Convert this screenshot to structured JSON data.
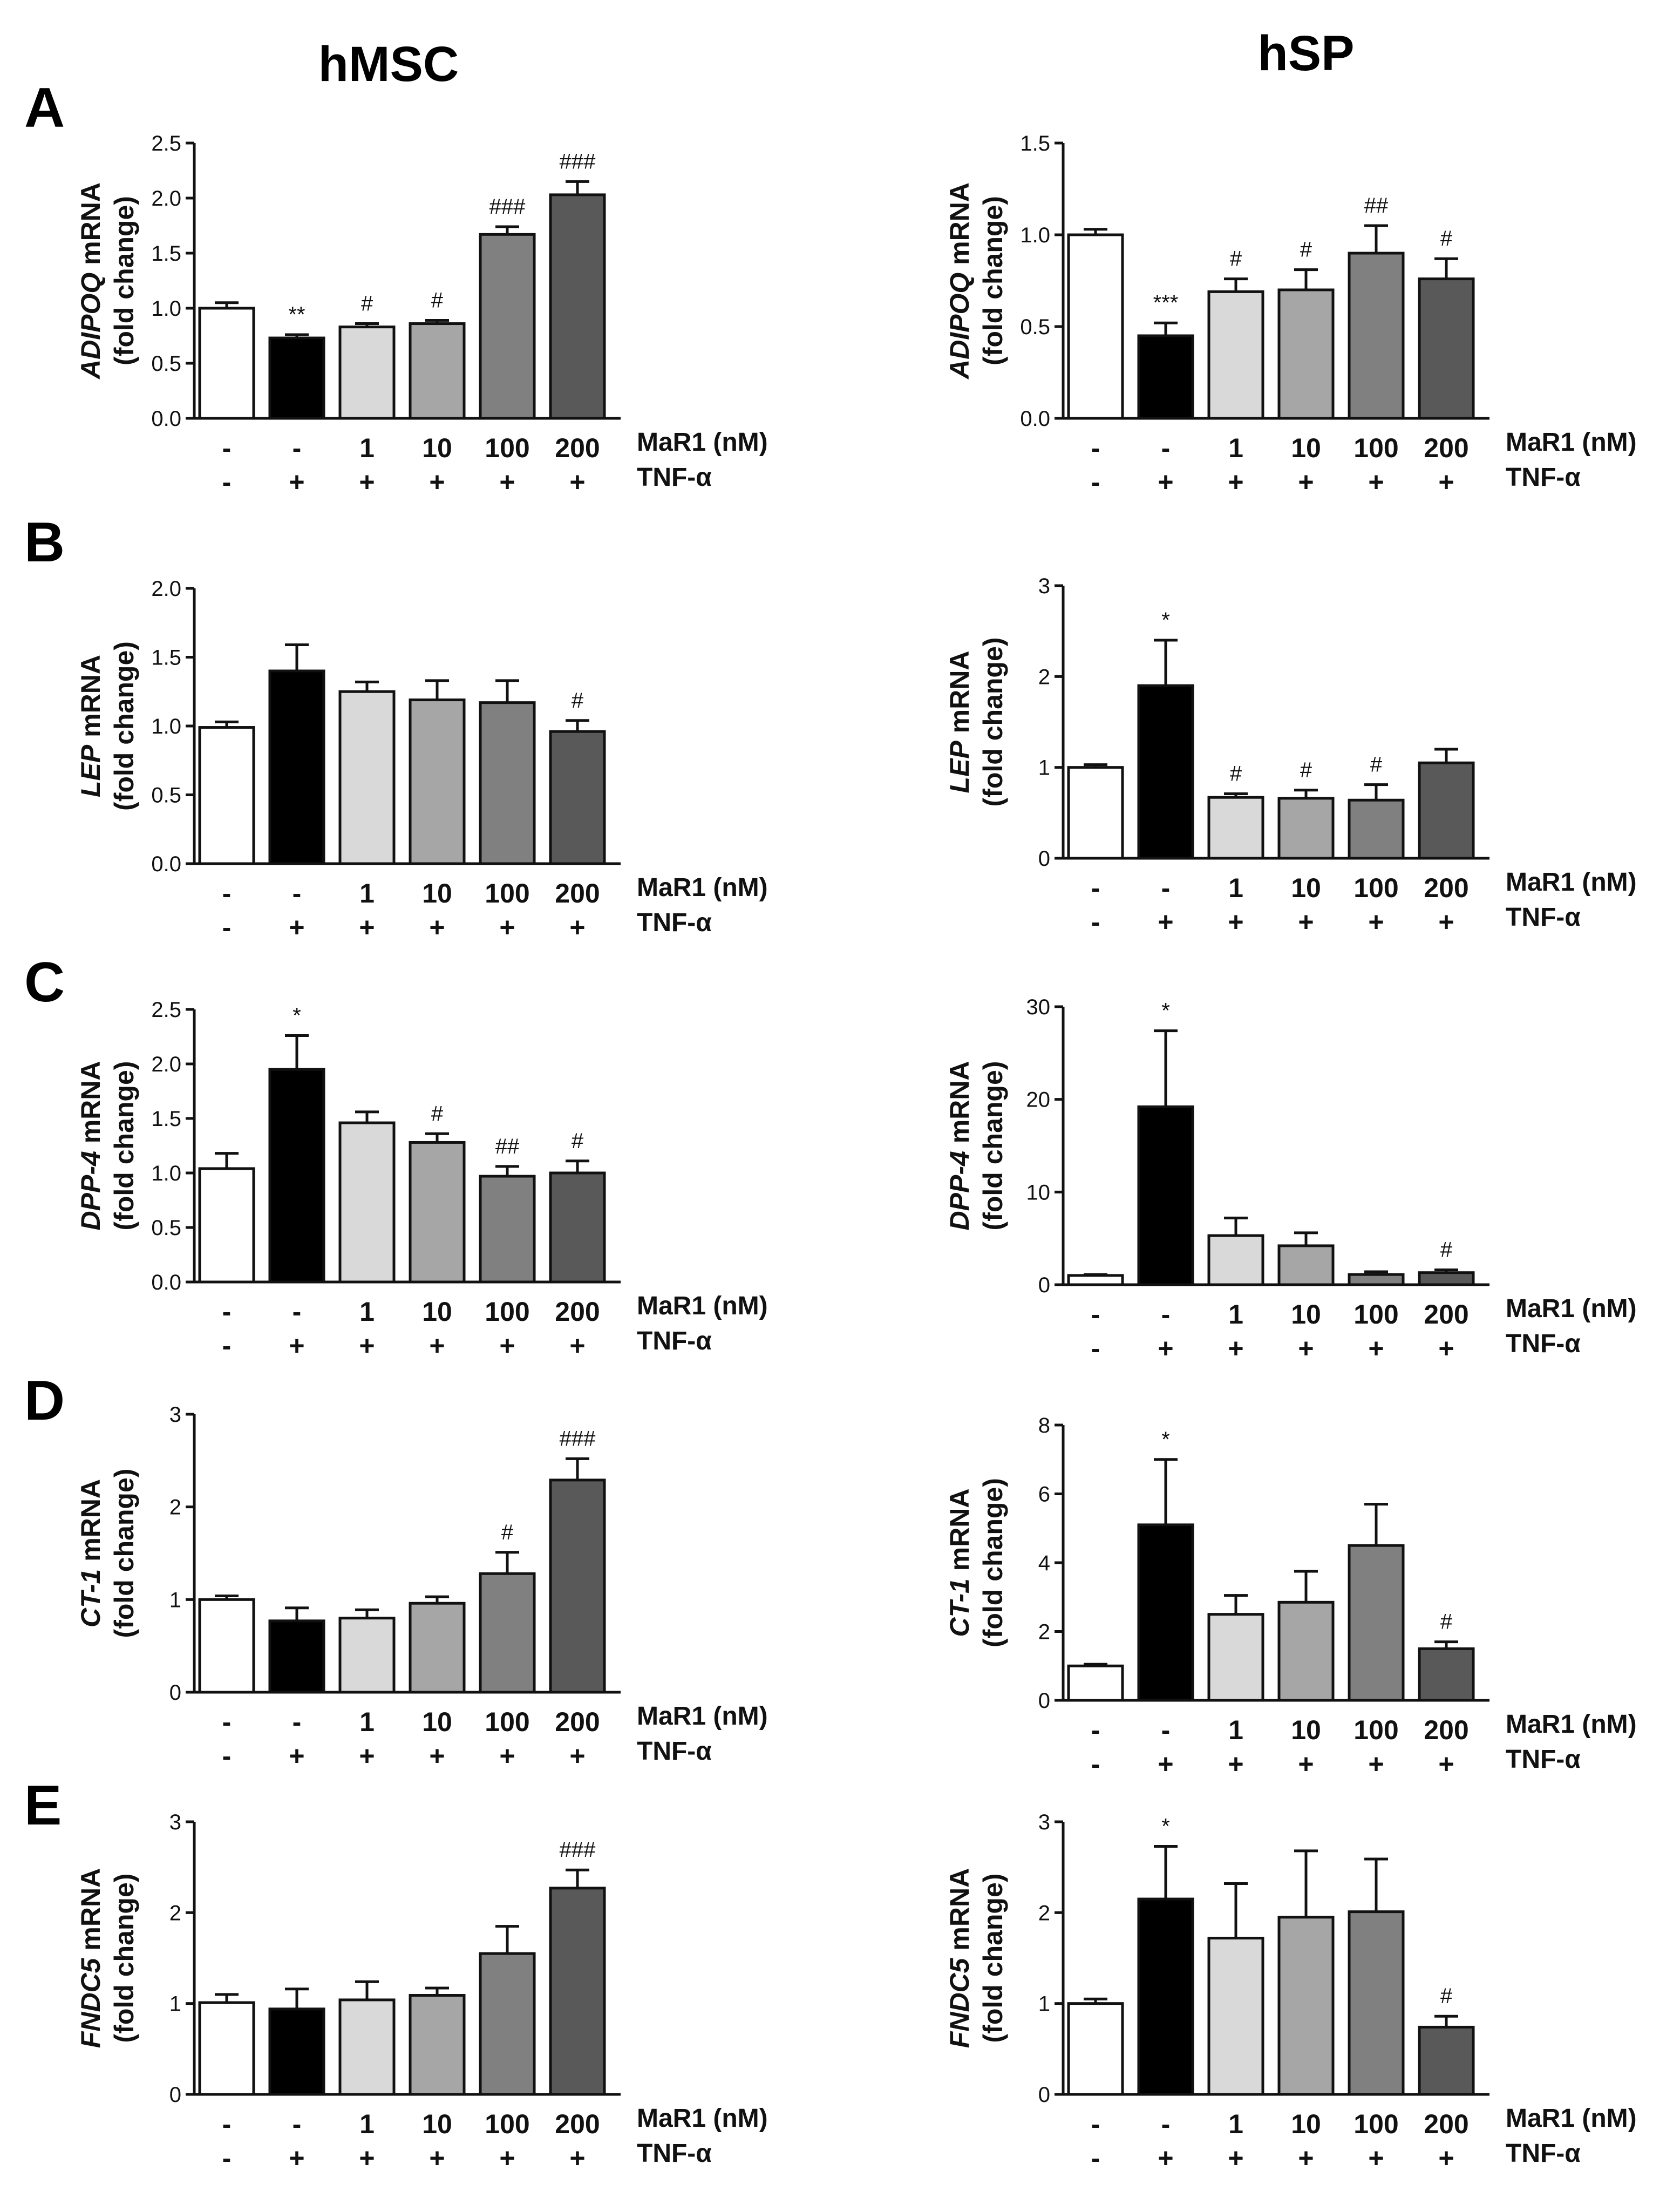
{
  "column_titles": [
    "hMSC",
    "hSP"
  ],
  "panel_letters": [
    "A",
    "B",
    "C",
    "D",
    "E"
  ],
  "conditions": {
    "mar1_title": "MaR1 (nM)",
    "tnf_title": "TNF-α",
    "mar1": [
      "-",
      "-",
      "1",
      "10",
      "100",
      "200"
    ],
    "tnf": [
      "-",
      "+",
      "+",
      "+",
      "+",
      "+"
    ]
  },
  "colors": {
    "bars": [
      "#ffffff",
      "#000000",
      "#d9d9d9",
      "#a6a6a6",
      "#808080",
      "#595959"
    ],
    "stroke": "#111111"
  },
  "chart_data": [
    {
      "id": "A-hMSC",
      "type": "bar",
      "panel": "A",
      "cell_type": "hMSC",
      "ylabel_gene": "ADIPOQ",
      "ylabel_suffix": " mRNA",
      "ylabel_line2": "(fold change)",
      "ylim": [
        0,
        2.5
      ],
      "yticks": [
        "0.0",
        "0.5",
        "1.0",
        "1.5",
        "2.0",
        "2.5"
      ],
      "values": [
        1.0,
        0.73,
        0.83,
        0.86,
        1.67,
        2.03
      ],
      "errors": [
        0.05,
        0.03,
        0.03,
        0.03,
        0.07,
        0.12
      ],
      "significance": [
        "",
        "**",
        "#",
        "#",
        "###",
        "###"
      ]
    },
    {
      "id": "A-hSP",
      "type": "bar",
      "panel": "A",
      "cell_type": "hSP",
      "ylabel_gene": "ADIPOQ",
      "ylabel_suffix": " mRNA",
      "ylabel_line2": "(fold change)",
      "ylim": [
        0,
        1.5
      ],
      "yticks": [
        "0.0",
        "0.5",
        "1.0",
        "1.5"
      ],
      "values": [
        1.0,
        0.45,
        0.69,
        0.7,
        0.9,
        0.76
      ],
      "errors": [
        0.03,
        0.07,
        0.07,
        0.11,
        0.15,
        0.11
      ],
      "significance": [
        "",
        "***",
        "#",
        "#",
        "##",
        "#"
      ]
    },
    {
      "id": "B-hMSC",
      "type": "bar",
      "panel": "B",
      "cell_type": "hMSC",
      "ylabel_gene": "LEP",
      "ylabel_suffix": " mRNA",
      "ylabel_line2": "(fold change)",
      "ylim": [
        0,
        2.0
      ],
      "yticks": [
        "0.0",
        "0.5",
        "1.0",
        "1.5",
        "2.0"
      ],
      "values": [
        0.99,
        1.4,
        1.25,
        1.19,
        1.17,
        0.96
      ],
      "errors": [
        0.04,
        0.19,
        0.07,
        0.14,
        0.16,
        0.08
      ],
      "significance": [
        "",
        "",
        "",
        "",
        "",
        "#"
      ]
    },
    {
      "id": "B-hSP",
      "type": "bar",
      "panel": "B",
      "cell_type": "hSP",
      "ylabel_gene": "LEP",
      "ylabel_suffix": " mRNA",
      "ylabel_line2": "(fold change)",
      "ylim": [
        0,
        3
      ],
      "yticks": [
        "0",
        "1",
        "2",
        "3"
      ],
      "values": [
        1.0,
        1.9,
        0.67,
        0.66,
        0.64,
        1.05
      ],
      "errors": [
        0.03,
        0.5,
        0.04,
        0.09,
        0.17,
        0.15
      ],
      "significance": [
        "",
        "*",
        "#",
        "#",
        "#",
        ""
      ]
    },
    {
      "id": "C-hMSC",
      "type": "bar",
      "panel": "C",
      "cell_type": "hMSC",
      "ylabel_gene": "DPP-4",
      "ylabel_suffix": " mRNA",
      "ylabel_line2": "(fold change)",
      "ylim": [
        0,
        2.5
      ],
      "yticks": [
        "0.0",
        "0.5",
        "1.0",
        "1.5",
        "2.0",
        "2.5"
      ],
      "values": [
        1.04,
        1.95,
        1.46,
        1.28,
        0.97,
        1.0
      ],
      "errors": [
        0.14,
        0.31,
        0.1,
        0.08,
        0.09,
        0.11
      ],
      "significance": [
        "",
        "*",
        "",
        "#",
        "##",
        "#"
      ]
    },
    {
      "id": "C-hSP",
      "type": "bar",
      "panel": "C",
      "cell_type": "hSP",
      "ylabel_gene": "DPP-4",
      "ylabel_suffix": " mRNA",
      "ylabel_line2": "(fold change)",
      "ylim": [
        0,
        30
      ],
      "yticks": [
        "0",
        "10",
        "20",
        "30"
      ],
      "values": [
        1.0,
        19.2,
        5.3,
        4.2,
        1.1,
        1.3
      ],
      "errors": [
        0.1,
        8.2,
        1.9,
        1.4,
        0.3,
        0.3
      ],
      "significance": [
        "",
        "*",
        "",
        "",
        "",
        "#"
      ]
    },
    {
      "id": "D-hMSC",
      "type": "bar",
      "panel": "D",
      "cell_type": "hMSC",
      "ylabel_gene": "CT-1",
      "ylabel_suffix": " mRNA",
      "ylabel_line2": "(fold change)",
      "ylim": [
        0,
        3
      ],
      "yticks": [
        "0",
        "1",
        "2",
        "3"
      ],
      "values": [
        1.0,
        0.77,
        0.8,
        0.96,
        1.28,
        2.29
      ],
      "errors": [
        0.04,
        0.14,
        0.09,
        0.07,
        0.23,
        0.23
      ],
      "significance": [
        "",
        "",
        "",
        "",
        "#",
        "###"
      ]
    },
    {
      "id": "D-hSP",
      "type": "bar",
      "panel": "D",
      "cell_type": "hSP",
      "ylabel_gene": "CT-1",
      "ylabel_suffix": " mRNA",
      "ylabel_line2": "(fold change)",
      "ylim": [
        0,
        8
      ],
      "yticks": [
        "0",
        "2",
        "4",
        "6",
        "8"
      ],
      "values": [
        1.0,
        5.1,
        2.5,
        2.85,
        4.5,
        1.5
      ],
      "errors": [
        0.05,
        1.9,
        0.55,
        0.9,
        1.2,
        0.2
      ],
      "significance": [
        "",
        "*",
        "",
        "",
        "",
        "#"
      ]
    },
    {
      "id": "E-hMSC",
      "type": "bar",
      "panel": "E",
      "cell_type": "hMSC",
      "ylabel_gene": "FNDC5",
      "ylabel_suffix": " mRNA",
      "ylabel_line2": "(fold change)",
      "ylim": [
        0,
        3
      ],
      "yticks": [
        "0",
        "1",
        "2",
        "3"
      ],
      "values": [
        1.01,
        0.94,
        1.04,
        1.09,
        1.55,
        2.27
      ],
      "errors": [
        0.09,
        0.22,
        0.2,
        0.08,
        0.3,
        0.2
      ],
      "significance": [
        "",
        "",
        "",
        "",
        "",
        "###"
      ]
    },
    {
      "id": "E-hSP",
      "type": "bar",
      "panel": "E",
      "cell_type": "hSP",
      "ylabel_gene": "FNDC5",
      "ylabel_suffix": " mRNA",
      "ylabel_line2": "(fold change)",
      "ylim": [
        0,
        3
      ],
      "yticks": [
        "0",
        "1",
        "2",
        "3"
      ],
      "values": [
        1.0,
        2.15,
        1.72,
        1.95,
        2.01,
        0.74
      ],
      "errors": [
        0.05,
        0.58,
        0.6,
        0.73,
        0.58,
        0.12
      ],
      "significance": [
        "",
        "*",
        "",
        "",
        "",
        "#"
      ]
    }
  ]
}
